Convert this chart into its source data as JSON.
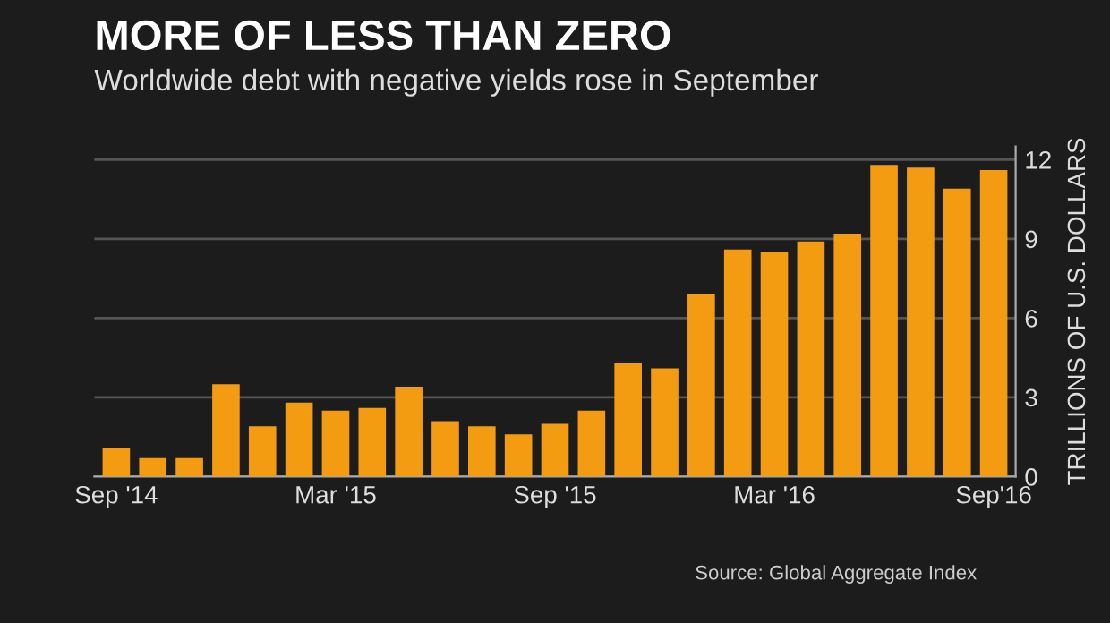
{
  "chart_data": {
    "type": "bar",
    "title": "MORE OF LESS THAN ZERO",
    "subtitle": "Worldwide debt with negative yields rose in September",
    "ylabel": "TRILLIONS OF U.S. DOLLARS",
    "categories": [
      "Sep '14",
      null,
      null,
      null,
      null,
      null,
      "Mar '15",
      null,
      null,
      null,
      null,
      null,
      "Sep '15",
      null,
      null,
      null,
      null,
      null,
      "Mar '16",
      null,
      null,
      null,
      null,
      null,
      "Sep'16"
    ],
    "values": [
      1.1,
      0.7,
      0.7,
      3.5,
      1.9,
      2.8,
      2.5,
      2.6,
      3.4,
      2.1,
      1.9,
      1.6,
      2.0,
      2.5,
      4.3,
      4.1,
      6.9,
      8.6,
      8.5,
      8.9,
      9.2,
      11.8,
      11.7,
      10.9,
      11.6
    ],
    "color": "#f39c12",
    "ylim": [
      0,
      12.5
    ],
    "yticks": [
      0,
      3,
      6,
      9,
      12
    ],
    "grid": "y",
    "annotations": [
      "Source: Global Aggregate Index"
    ]
  }
}
